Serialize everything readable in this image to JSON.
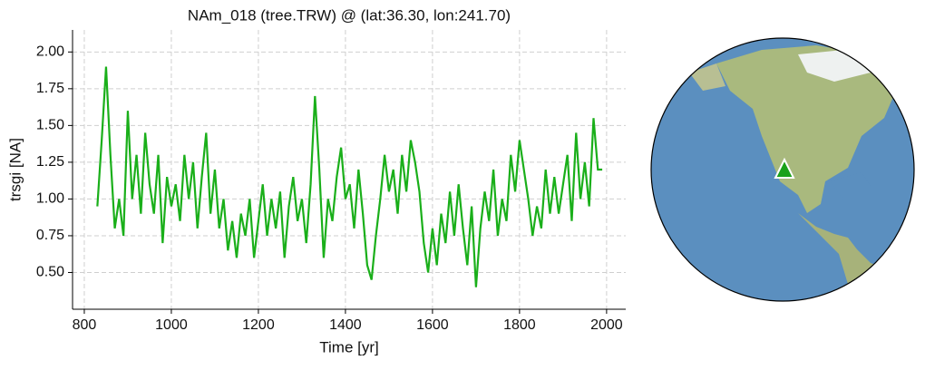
{
  "chart_data": {
    "type": "line",
    "title": "NAm_018 (tree.TRW) @ (lat:36.30, lon:241.70)",
    "xlabel": "Time [yr]",
    "ylabel": "trsgi [NA]",
    "x": [
      830,
      840,
      850,
      860,
      870,
      880,
      890,
      900,
      910,
      920,
      930,
      940,
      950,
      960,
      970,
      980,
      990,
      1000,
      1010,
      1020,
      1030,
      1040,
      1050,
      1060,
      1070,
      1080,
      1090,
      1100,
      1110,
      1120,
      1130,
      1140,
      1150,
      1160,
      1170,
      1180,
      1190,
      1200,
      1210,
      1220,
      1230,
      1240,
      1250,
      1260,
      1270,
      1280,
      1290,
      1300,
      1310,
      1320,
      1330,
      1340,
      1350,
      1360,
      1370,
      1380,
      1390,
      1400,
      1410,
      1420,
      1430,
      1440,
      1450,
      1460,
      1470,
      1480,
      1490,
      1500,
      1510,
      1520,
      1530,
      1540,
      1550,
      1560,
      1570,
      1580,
      1590,
      1600,
      1610,
      1620,
      1630,
      1640,
      1650,
      1660,
      1670,
      1680,
      1690,
      1700,
      1710,
      1720,
      1730,
      1740,
      1750,
      1760,
      1770,
      1780,
      1790,
      1800,
      1810,
      1820,
      1830,
      1840,
      1850,
      1860,
      1870,
      1880,
      1890,
      1900,
      1910,
      1920,
      1930,
      1940,
      1950,
      1960,
      1970,
      1980,
      1990
    ],
    "series": [
      {
        "name": "NAm_018",
        "color": "#1aaf1a",
        "values": [
          0.95,
          1.4,
          1.9,
          1.3,
          0.8,
          1.0,
          0.75,
          1.6,
          1.0,
          1.3,
          0.9,
          1.45,
          1.1,
          0.9,
          1.3,
          0.7,
          1.15,
          0.95,
          1.1,
          0.85,
          1.3,
          1.0,
          1.25,
          0.8,
          1.15,
          1.45,
          0.9,
          1.2,
          0.8,
          1.0,
          0.65,
          0.85,
          0.6,
          0.9,
          0.75,
          1.0,
          0.6,
          0.85,
          1.1,
          0.75,
          1.0,
          0.8,
          1.05,
          0.6,
          0.95,
          1.15,
          0.85,
          1.0,
          0.7,
          1.1,
          1.7,
          1.2,
          0.6,
          1.0,
          0.85,
          1.15,
          1.35,
          1.0,
          1.1,
          0.8,
          1.2,
          0.9,
          0.55,
          0.45,
          0.75,
          1.0,
          1.3,
          1.05,
          1.2,
          0.9,
          1.3,
          1.05,
          1.4,
          1.25,
          1.05,
          0.7,
          0.5,
          0.8,
          0.55,
          0.9,
          0.7,
          1.05,
          0.75,
          1.1,
          0.8,
          0.55,
          0.95,
          0.4,
          0.8,
          1.05,
          0.85,
          1.2,
          0.75,
          1.0,
          0.85,
          1.3,
          1.05,
          1.4,
          1.2,
          1.0,
          0.75,
          0.95,
          0.8,
          1.2,
          0.9,
          1.15,
          0.9,
          1.1,
          1.3,
          0.85,
          1.45,
          1.0,
          1.25,
          0.95,
          1.55,
          1.2,
          1.2
        ]
      }
    ],
    "xlim": [
      773,
      2044
    ],
    "xticks": [
      800,
      1000,
      1200,
      1400,
      1600,
      1800,
      2000
    ],
    "ylim": [
      0.25,
      2.15
    ],
    "yticks": [
      {
        "value": 0.5,
        "label": "0.50"
      },
      {
        "value": 0.75,
        "label": "0.75"
      },
      {
        "value": 1.0,
        "label": "1.00"
      },
      {
        "value": 1.25,
        "label": "1.25"
      },
      {
        "value": 1.5,
        "label": "1.50"
      },
      {
        "value": 1.75,
        "label": "1.75"
      },
      {
        "value": 2.0,
        "label": "2.00"
      }
    ],
    "grid": true
  }
}
